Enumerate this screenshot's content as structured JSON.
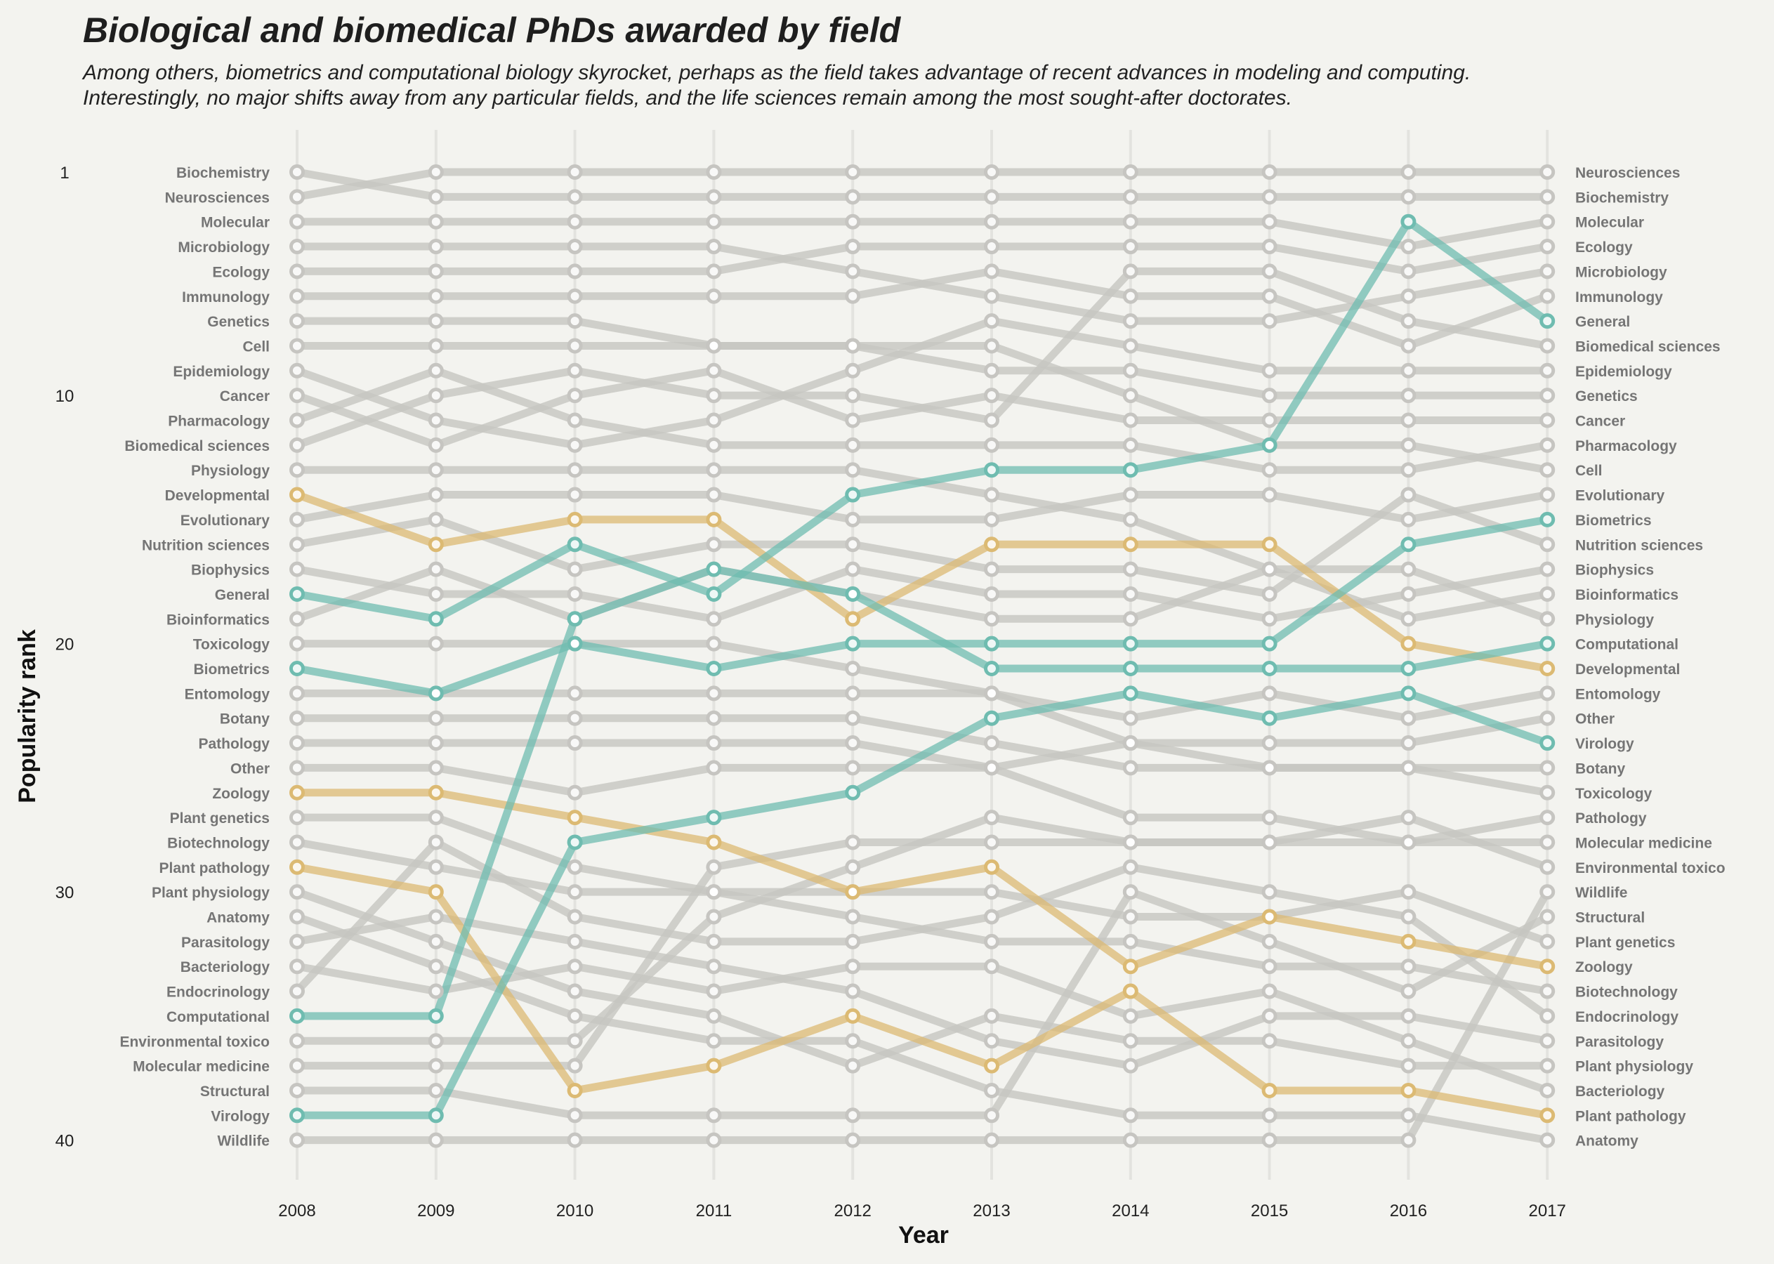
{
  "chart_data": {
    "type": "line",
    "title": "Biological and biomedical PhDs awarded by field",
    "subtitle": [
      "Among others, biometrics and computational biology skyrocket, perhaps as the field takes advantage of recent advances in modeling and computing.",
      "Interestingly, no major shifts away from any particular fields, and the life sciences remain among the most sought-after doctorates."
    ],
    "xlabel": "Year",
    "ylabel": "Popularity rank",
    "x": [
      2008,
      2009,
      2010,
      2011,
      2012,
      2013,
      2014,
      2015,
      2016,
      2017
    ],
    "y_ticks": [
      1,
      10,
      20,
      30,
      40
    ],
    "ylim": [
      40,
      1
    ],
    "grid": "vertical",
    "colors": {
      "background": "#f3f3ef",
      "muted": "#c6c5c1",
      "rising": "#6fbcb0",
      "falling": "#dcba73",
      "grid": "#e3e3df"
    },
    "series": [
      {
        "name": "Biochemistry",
        "group": "muted",
        "ranks": [
          1,
          2,
          2,
          2,
          2,
          2,
          2,
          2,
          2,
          2
        ]
      },
      {
        "name": "Neurosciences",
        "group": "muted",
        "ranks": [
          2,
          1,
          1,
          1,
          1,
          1,
          1,
          1,
          1,
          1
        ]
      },
      {
        "name": "Molecular",
        "group": "muted",
        "ranks": [
          3,
          3,
          3,
          3,
          3,
          3,
          3,
          3,
          4,
          3
        ]
      },
      {
        "name": "Microbiology",
        "group": "muted",
        "ranks": [
          4,
          4,
          4,
          4,
          5,
          6,
          7,
          7,
          6,
          5
        ]
      },
      {
        "name": "Ecology",
        "group": "muted",
        "ranks": [
          5,
          5,
          5,
          5,
          4,
          4,
          4,
          4,
          5,
          4
        ]
      },
      {
        "name": "Immunology",
        "group": "muted",
        "ranks": [
          6,
          6,
          6,
          6,
          6,
          5,
          6,
          6,
          8,
          6
        ]
      },
      {
        "name": "Genetics",
        "group": "muted",
        "ranks": [
          7,
          7,
          7,
          8,
          8,
          9,
          9,
          10,
          10,
          10
        ]
      },
      {
        "name": "Cell",
        "group": "muted",
        "ranks": [
          8,
          8,
          8,
          8,
          8,
          8,
          10,
          12,
          12,
          13
        ]
      },
      {
        "name": "Epidemiology",
        "group": "muted",
        "ranks": [
          9,
          11,
          12,
          11,
          9,
          7,
          8,
          9,
          9,
          9
        ]
      },
      {
        "name": "Cancer",
        "group": "muted",
        "ranks": [
          10,
          12,
          10,
          9,
          11,
          10,
          11,
          11,
          11,
          11
        ]
      },
      {
        "name": "Pharmacology",
        "group": "muted",
        "ranks": [
          11,
          9,
          11,
          12,
          12,
          12,
          12,
          13,
          13,
          12
        ]
      },
      {
        "name": "Biomedical sciences",
        "group": "muted",
        "ranks": [
          12,
          10,
          9,
          10,
          10,
          11,
          5,
          5,
          7,
          8
        ]
      },
      {
        "name": "Physiology",
        "group": "muted",
        "ranks": [
          13,
          13,
          13,
          13,
          13,
          14,
          15,
          17,
          17,
          19
        ]
      },
      {
        "name": "Developmental",
        "group": "falling",
        "ranks": [
          14,
          16,
          15,
          15,
          19,
          16,
          16,
          16,
          20,
          21
        ]
      },
      {
        "name": "Evolutionary",
        "group": "muted",
        "ranks": [
          15,
          14,
          14,
          14,
          15,
          15,
          14,
          14,
          15,
          14
        ]
      },
      {
        "name": "Nutrition sciences",
        "group": "muted",
        "ranks": [
          16,
          15,
          17,
          16,
          16,
          17,
          17,
          18,
          14,
          16
        ]
      },
      {
        "name": "Biophysics",
        "group": "muted",
        "ranks": [
          17,
          18,
          18,
          19,
          17,
          18,
          18,
          19,
          18,
          17
        ]
      },
      {
        "name": "General",
        "group": "rising",
        "ranks": [
          18,
          19,
          16,
          18,
          14,
          13,
          13,
          12,
          3,
          7
        ]
      },
      {
        "name": "Bioinformatics",
        "group": "muted",
        "ranks": [
          19,
          17,
          19,
          17,
          18,
          19,
          19,
          17,
          19,
          18
        ]
      },
      {
        "name": "Toxicology",
        "group": "muted",
        "ranks": [
          20,
          20,
          20,
          20,
          21,
          22,
          24,
          25,
          25,
          26
        ]
      },
      {
        "name": "Biometrics",
        "group": "rising",
        "ranks": [
          21,
          22,
          20,
          21,
          20,
          20,
          20,
          20,
          16,
          15
        ]
      },
      {
        "name": "Entomology",
        "group": "muted",
        "ranks": [
          22,
          22,
          22,
          22,
          22,
          22,
          23,
          22,
          23,
          22
        ]
      },
      {
        "name": "Botany",
        "group": "muted",
        "ranks": [
          23,
          23,
          23,
          23,
          23,
          24,
          25,
          25,
          25,
          25
        ]
      },
      {
        "name": "Pathology",
        "group": "muted",
        "ranks": [
          24,
          24,
          24,
          24,
          24,
          25,
          27,
          27,
          28,
          27
        ]
      },
      {
        "name": "Other",
        "group": "muted",
        "ranks": [
          25,
          25,
          26,
          25,
          25,
          25,
          24,
          24,
          24,
          23
        ]
      },
      {
        "name": "Zoology",
        "group": "falling",
        "ranks": [
          26,
          26,
          27,
          28,
          30,
          29,
          33,
          31,
          32,
          33
        ]
      },
      {
        "name": "Plant genetics",
        "group": "muted",
        "ranks": [
          27,
          27,
          29,
          30,
          30,
          30,
          31,
          31,
          30,
          32
        ]
      },
      {
        "name": "Biotechnology",
        "group": "muted",
        "ranks": [
          28,
          29,
          30,
          30,
          31,
          32,
          32,
          33,
          33,
          34
        ]
      },
      {
        "name": "Plant pathology",
        "group": "falling",
        "ranks": [
          29,
          30,
          38,
          37,
          35,
          37,
          34,
          38,
          38,
          39
        ]
      },
      {
        "name": "Plant physiology",
        "group": "muted",
        "ranks": [
          30,
          32,
          34,
          35,
          37,
          35,
          36,
          36,
          37,
          37
        ]
      },
      {
        "name": "Anatomy",
        "group": "muted",
        "ranks": [
          31,
          33,
          35,
          36,
          36,
          38,
          39,
          39,
          39,
          40
        ]
      },
      {
        "name": "Parasitology",
        "group": "muted",
        "ranks": [
          32,
          31,
          32,
          33,
          34,
          36,
          37,
          35,
          35,
          36
        ]
      },
      {
        "name": "Bacteriology",
        "group": "muted",
        "ranks": [
          33,
          34,
          33,
          34,
          33,
          33,
          35,
          34,
          36,
          38
        ]
      },
      {
        "name": "Endocrinology",
        "group": "muted",
        "ranks": [
          34,
          28,
          31,
          32,
          32,
          31,
          29,
          30,
          31,
          35
        ]
      },
      {
        "name": "Computational",
        "group": "rising",
        "ranks": [
          35,
          35,
          19,
          17,
          18,
          21,
          21,
          21,
          21,
          20
        ]
      },
      {
        "name": "Environmental toxico",
        "group": "muted",
        "ranks": [
          36,
          36,
          36,
          31,
          29,
          27,
          28,
          28,
          27,
          29
        ]
      },
      {
        "name": "Molecular medicine",
        "group": "muted",
        "ranks": [
          37,
          37,
          37,
          29,
          28,
          28,
          28,
          28,
          28,
          28
        ]
      },
      {
        "name": "Structural",
        "group": "muted",
        "ranks": [
          38,
          38,
          39,
          39,
          39,
          39,
          30,
          32,
          34,
          31
        ]
      },
      {
        "name": "Virology",
        "group": "rising",
        "ranks": [
          39,
          39,
          28,
          27,
          26,
          23,
          22,
          23,
          22,
          24
        ]
      },
      {
        "name": "Wildlife",
        "group": "muted",
        "ranks": [
          40,
          40,
          40,
          40,
          40,
          40,
          40,
          40,
          40,
          30
        ]
      }
    ]
  }
}
